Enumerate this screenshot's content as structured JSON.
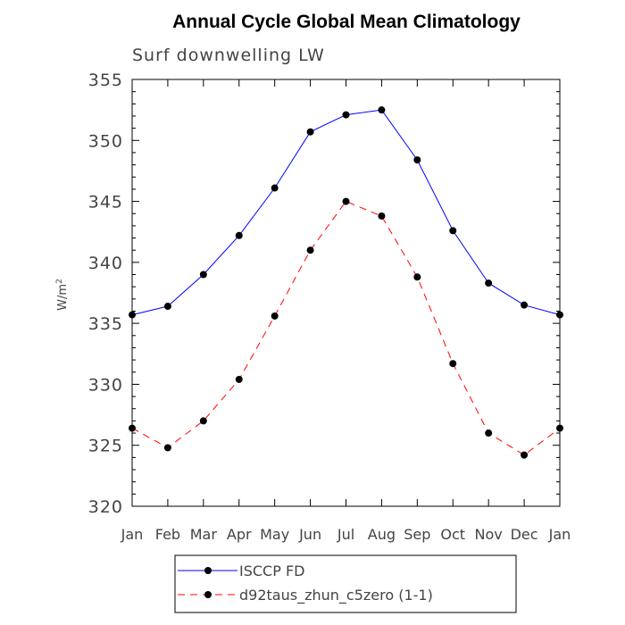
{
  "chart_data": {
    "type": "line",
    "title": "Annual Cycle Global Mean Climatology",
    "subtitle": "Surf downwelling LW",
    "ylabel": "W/m",
    "ylabel_sup": "2",
    "xlabel": "",
    "categories": [
      "Jan",
      "Feb",
      "Mar",
      "Apr",
      "May",
      "Jun",
      "Jul",
      "Aug",
      "Sep",
      "Oct",
      "Nov",
      "Dec",
      "Jan"
    ],
    "ylim": [
      320,
      355
    ],
    "yticks": [
      320,
      325,
      330,
      335,
      340,
      345,
      350,
      355
    ],
    "ytick_labels": [
      "320",
      "325",
      "330",
      "335",
      "340",
      "345",
      "350",
      "355"
    ],
    "grid": false,
    "legend_position": "bottom-center",
    "series": [
      {
        "name": "ISCCP FD",
        "color": "#0000ff",
        "style": "solid",
        "marker": "circle",
        "values": [
          335.7,
          336.4,
          339.0,
          342.2,
          346.1,
          350.7,
          352.1,
          352.5,
          348.4,
          342.6,
          338.3,
          336.5,
          335.7
        ]
      },
      {
        "name": "d92taus_zhun_c5zero (1-1)",
        "color": "#ff0000",
        "style": "dashed",
        "marker": "circle",
        "values": [
          326.4,
          324.8,
          327.0,
          330.4,
          335.6,
          341.0,
          345.0,
          343.8,
          338.8,
          331.7,
          326.0,
          324.2,
          326.4
        ]
      }
    ]
  }
}
